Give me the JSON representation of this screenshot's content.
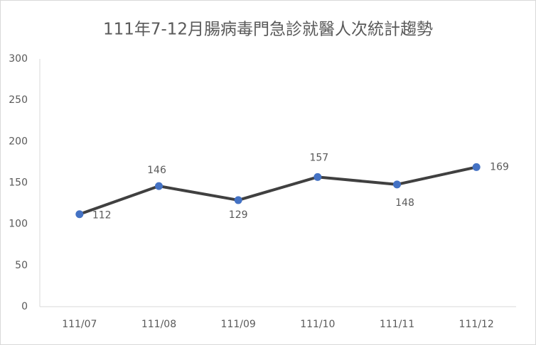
{
  "chart_data": {
    "type": "line",
    "title": "111年7-12月腸病毒門急診就醫人次統計趨勢",
    "categories": [
      "111/07",
      "111/08",
      "111/09",
      "111/10",
      "111/11",
      "111/12"
    ],
    "values": [
      112,
      146,
      129,
      157,
      148,
      169
    ],
    "line_color": "#404040",
    "marker_color": "#4472c4",
    "ylim": [
      0,
      300
    ],
    "yticks": [
      0,
      50,
      100,
      150,
      200,
      250,
      300
    ],
    "grid": false
  }
}
